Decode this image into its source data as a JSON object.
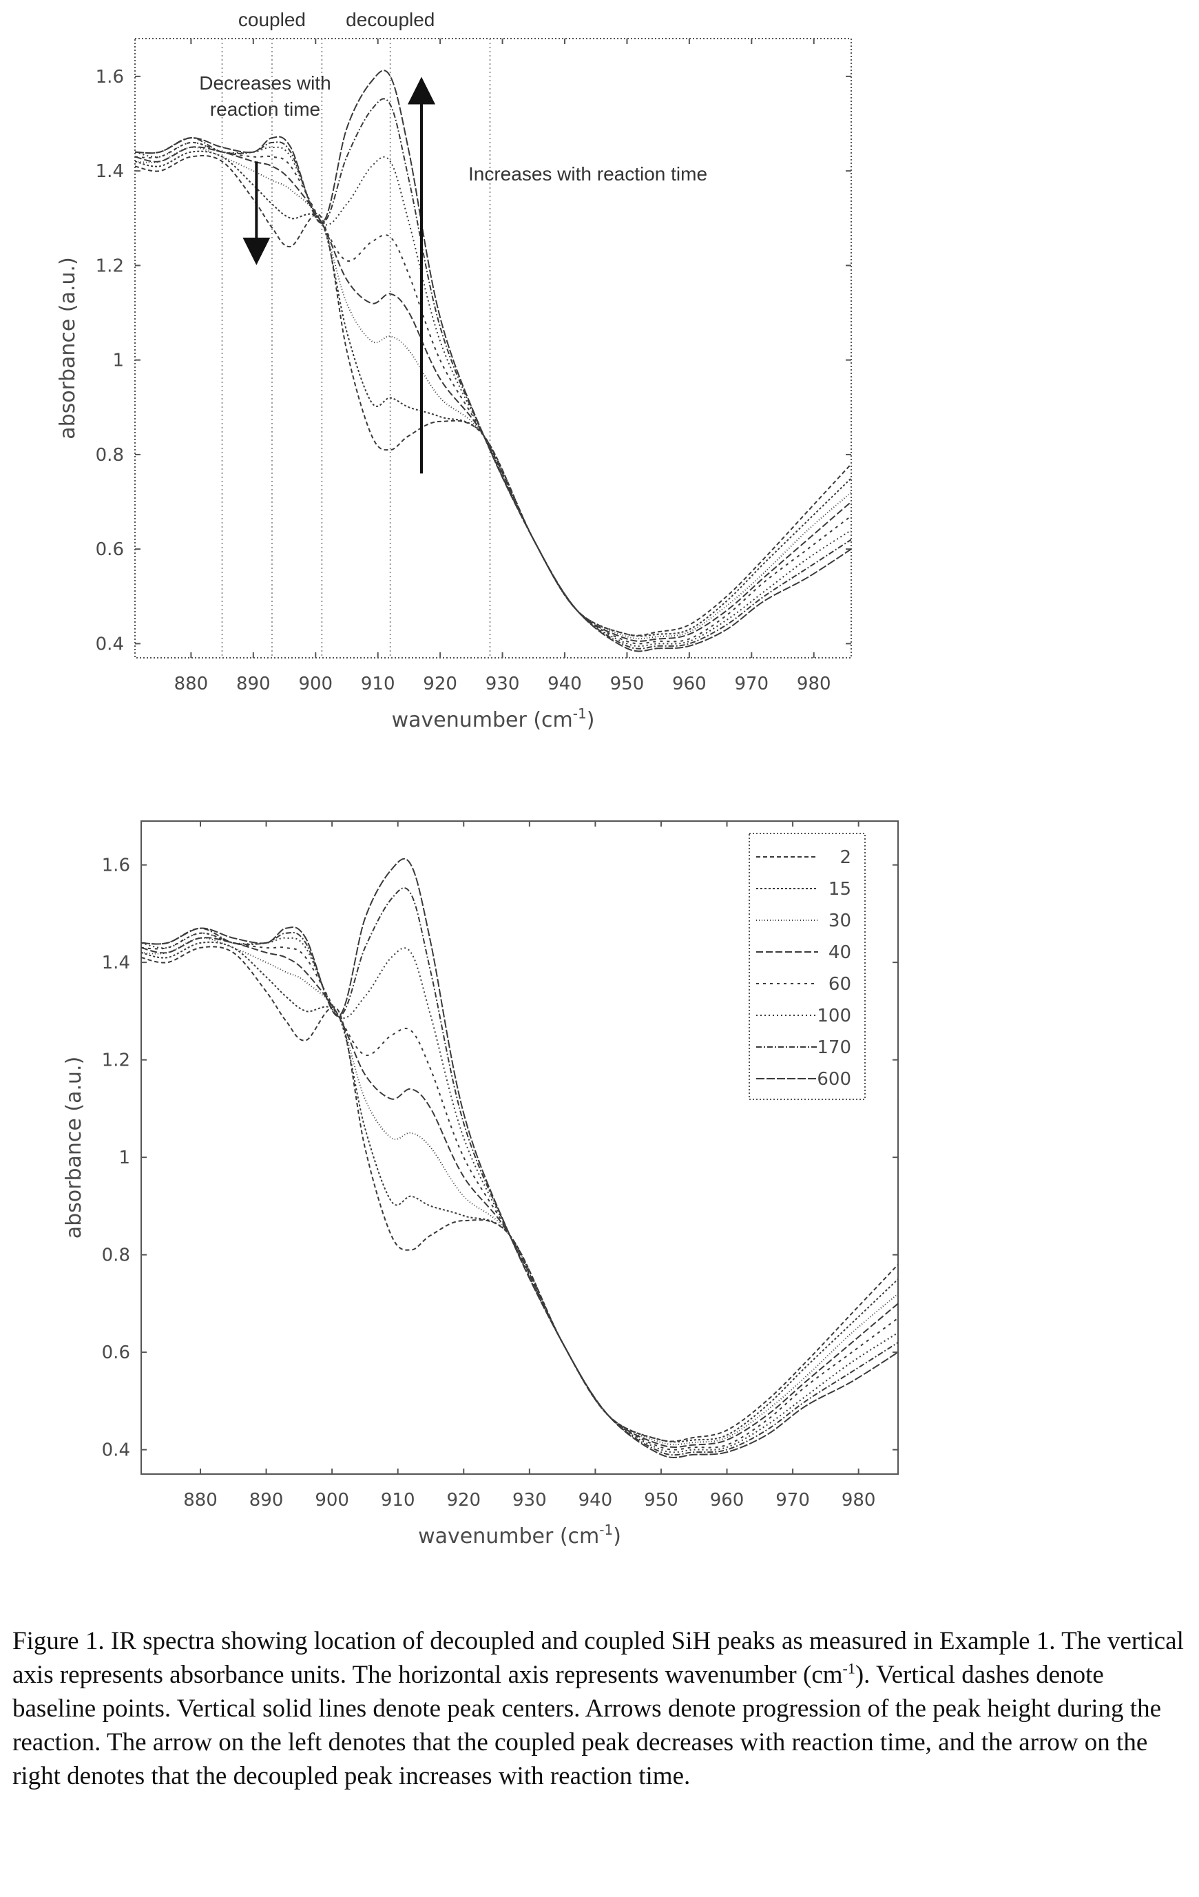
{
  "chart_data": [
    {
      "type": "line",
      "title": "",
      "xlabel": "wavenumber (cm",
      "xlabel_sup": "-1",
      "xlabel_end": ")",
      "ylabel": "absorbance (a.u.)",
      "xlim": [
        871,
        986
      ],
      "ylim": [
        0.37,
        1.68
      ],
      "xticks": [
        880,
        890,
        900,
        910,
        920,
        930,
        940,
        950,
        960,
        970,
        980
      ],
      "yticks": [
        0.4,
        0.6,
        0.8,
        1,
        1.2,
        1.4,
        1.6
      ],
      "ytick_labels": [
        "0.4",
        "0.6",
        "0.8",
        "1",
        "1.2",
        "1.4",
        "1.6"
      ],
      "grid": false,
      "vertical_dashed_lines_x": [
        885,
        893,
        901,
        912,
        928
      ],
      "annotations": [
        {
          "text": "coupled",
          "x": 893
        },
        {
          "text": "decoupled",
          "x": 912
        },
        {
          "text": "Decreases with",
          "x": 893
        },
        {
          "text": "reaction time",
          "x": 893
        },
        {
          "text": "Increases with reaction time",
          "x": 935
        }
      ],
      "arrows": [
        {
          "direction": "down",
          "x": 890.5,
          "y_from": 1.42,
          "y_to": 1.23
        },
        {
          "direction": "up",
          "x": 917,
          "y_from": 0.76,
          "y_to": 1.57
        }
      ],
      "series_keypoints": [
        "x",
        "2",
        "15",
        "30",
        "40",
        "60",
        "100",
        "170",
        "600"
      ],
      "series": [
        {
          "name": "2",
          "values": [
            1.41,
            1.4,
            1.43,
            1.42,
            1.34,
            1.28,
            1.24,
            1.3,
            1.02,
            0.84,
            0.81,
            0.84,
            0.87,
            0.84,
            0.62,
            0.47,
            0.42,
            0.425,
            0.44,
            0.5,
            0.58,
            0.68,
            0.78
          ]
        },
        {
          "name": "15",
          "values": [
            1.42,
            1.41,
            1.44,
            1.43,
            1.37,
            1.33,
            1.3,
            1.29,
            1.06,
            0.91,
            0.92,
            0.9,
            0.88,
            0.84,
            0.62,
            0.47,
            0.42,
            0.42,
            0.43,
            0.49,
            0.57,
            0.66,
            0.75
          ]
        },
        {
          "name": "30",
          "values": [
            1.42,
            1.42,
            1.45,
            1.43,
            1.4,
            1.38,
            1.36,
            1.29,
            1.12,
            1.04,
            1.05,
            1.02,
            0.92,
            0.84,
            0.62,
            0.47,
            0.415,
            0.415,
            0.425,
            0.48,
            0.55,
            0.64,
            0.72
          ]
        },
        {
          "name": "40",
          "values": [
            1.43,
            1.42,
            1.45,
            1.44,
            1.42,
            1.41,
            1.38,
            1.29,
            1.17,
            1.12,
            1.14,
            1.1,
            0.96,
            0.84,
            0.62,
            0.47,
            0.41,
            0.41,
            0.42,
            0.47,
            0.54,
            0.62,
            0.7
          ]
        },
        {
          "name": "60",
          "values": [
            1.43,
            1.43,
            1.46,
            1.44,
            1.43,
            1.43,
            1.41,
            1.29,
            1.21,
            1.25,
            1.26,
            1.18,
            1.0,
            0.84,
            0.62,
            0.47,
            0.405,
            0.405,
            0.41,
            0.46,
            0.53,
            0.6,
            0.67
          ]
        },
        {
          "name": "100",
          "values": [
            1.44,
            1.43,
            1.46,
            1.44,
            1.44,
            1.45,
            1.43,
            1.29,
            1.33,
            1.41,
            1.42,
            1.29,
            1.04,
            0.84,
            0.62,
            0.47,
            0.4,
            0.4,
            0.405,
            0.45,
            0.51,
            0.58,
            0.64
          ]
        },
        {
          "name": "170",
          "values": [
            1.44,
            1.44,
            1.47,
            1.44,
            1.44,
            1.46,
            1.44,
            1.29,
            1.43,
            1.53,
            1.54,
            1.38,
            1.07,
            0.84,
            0.62,
            0.47,
            0.395,
            0.395,
            0.4,
            0.44,
            0.5,
            0.56,
            0.62
          ]
        },
        {
          "name": "600",
          "values": [
            1.44,
            1.44,
            1.47,
            1.45,
            1.44,
            1.47,
            1.45,
            1.29,
            1.49,
            1.59,
            1.6,
            1.44,
            1.09,
            0.84,
            0.62,
            0.47,
            0.39,
            0.39,
            0.395,
            0.43,
            0.49,
            0.54,
            0.6
          ]
        }
      ],
      "x": [
        871,
        875,
        880,
        885,
        890,
        893,
        896,
        901,
        905,
        909,
        912,
        915,
        920,
        927,
        935,
        942,
        950,
        955,
        960,
        966,
        972,
        979,
        986
      ]
    },
    {
      "type": "line",
      "title": "",
      "xlabel": "wavenumber (cm",
      "xlabel_sup": "-1",
      "xlabel_end": ")",
      "ylabel": "absorbance (a.u.)",
      "xlim": [
        871,
        986
      ],
      "ylim": [
        0.35,
        1.69
      ],
      "xticks": [
        880,
        890,
        900,
        910,
        920,
        930,
        940,
        950,
        960,
        970,
        980
      ],
      "yticks": [
        0.4,
        0.6,
        0.8,
        1,
        1.2,
        1.4,
        1.6
      ],
      "ytick_labels": [
        "0.4",
        "0.6",
        "0.8",
        "1",
        "1.2",
        "1.4",
        "1.6"
      ],
      "grid": false,
      "legend": {
        "position": "top-right",
        "entries": [
          "2",
          "15",
          "30",
          "40",
          "60",
          "100",
          "170",
          "600"
        ]
      },
      "x": [
        871,
        875,
        880,
        885,
        890,
        893,
        896,
        901,
        905,
        909,
        912,
        915,
        920,
        927,
        935,
        942,
        950,
        955,
        960,
        966,
        972,
        979,
        986
      ],
      "series": [
        {
          "name": "2",
          "values": [
            1.41,
            1.4,
            1.43,
            1.42,
            1.34,
            1.28,
            1.24,
            1.3,
            1.02,
            0.84,
            0.81,
            0.84,
            0.87,
            0.84,
            0.62,
            0.47,
            0.42,
            0.425,
            0.44,
            0.5,
            0.58,
            0.68,
            0.78
          ]
        },
        {
          "name": "15",
          "values": [
            1.42,
            1.41,
            1.44,
            1.43,
            1.37,
            1.33,
            1.3,
            1.29,
            1.06,
            0.91,
            0.92,
            0.9,
            0.88,
            0.84,
            0.62,
            0.47,
            0.42,
            0.42,
            0.43,
            0.49,
            0.57,
            0.66,
            0.75
          ]
        },
        {
          "name": "30",
          "values": [
            1.42,
            1.42,
            1.45,
            1.43,
            1.4,
            1.38,
            1.36,
            1.29,
            1.12,
            1.04,
            1.05,
            1.02,
            0.92,
            0.84,
            0.62,
            0.47,
            0.415,
            0.415,
            0.425,
            0.48,
            0.55,
            0.64,
            0.72
          ]
        },
        {
          "name": "40",
          "values": [
            1.43,
            1.42,
            1.45,
            1.44,
            1.42,
            1.41,
            1.38,
            1.29,
            1.17,
            1.12,
            1.14,
            1.1,
            0.96,
            0.84,
            0.62,
            0.47,
            0.41,
            0.41,
            0.42,
            0.47,
            0.54,
            0.62,
            0.7
          ]
        },
        {
          "name": "60",
          "values": [
            1.43,
            1.43,
            1.46,
            1.44,
            1.43,
            1.43,
            1.41,
            1.29,
            1.21,
            1.25,
            1.26,
            1.18,
            1.0,
            0.84,
            0.62,
            0.47,
            0.405,
            0.405,
            0.41,
            0.46,
            0.53,
            0.6,
            0.67
          ]
        },
        {
          "name": "100",
          "values": [
            1.44,
            1.43,
            1.46,
            1.44,
            1.44,
            1.45,
            1.43,
            1.29,
            1.33,
            1.41,
            1.42,
            1.29,
            1.04,
            0.84,
            0.62,
            0.47,
            0.4,
            0.4,
            0.405,
            0.45,
            0.51,
            0.58,
            0.64
          ]
        },
        {
          "name": "170",
          "values": [
            1.44,
            1.44,
            1.47,
            1.44,
            1.44,
            1.46,
            1.44,
            1.29,
            1.43,
            1.53,
            1.54,
            1.38,
            1.07,
            0.84,
            0.62,
            0.47,
            0.395,
            0.395,
            0.4,
            0.44,
            0.5,
            0.56,
            0.62
          ]
        },
        {
          "name": "600",
          "values": [
            1.44,
            1.44,
            1.47,
            1.45,
            1.44,
            1.47,
            1.45,
            1.29,
            1.49,
            1.59,
            1.6,
            1.44,
            1.09,
            0.84,
            0.62,
            0.47,
            0.39,
            0.39,
            0.395,
            0.43,
            0.49,
            0.54,
            0.6
          ]
        }
      ]
    }
  ],
  "caption": {
    "part1": "Figure 1.  IR spectra showing location of decoupled and coupled SiH peaks as measured in Example 1. The vertical axis represents absorbance units.  The horizontal axis represents wavenumber (cm",
    "sup": "-1",
    "part2": ").  Vertical dashes denote baseline points.  Vertical solid lines denote peak centers.  Arrows denote progression of the peak height during the reaction. The arrow on the left denotes that the coupled peak decreases with reaction time, and the arrow on the right denotes that the decoupled peak increases with reaction time."
  },
  "styles": {
    "axis_color": "#555555",
    "line_color": "#3a3a3a",
    "baseline_color": "#9a9a9a",
    "arrow_color": "#111111"
  }
}
